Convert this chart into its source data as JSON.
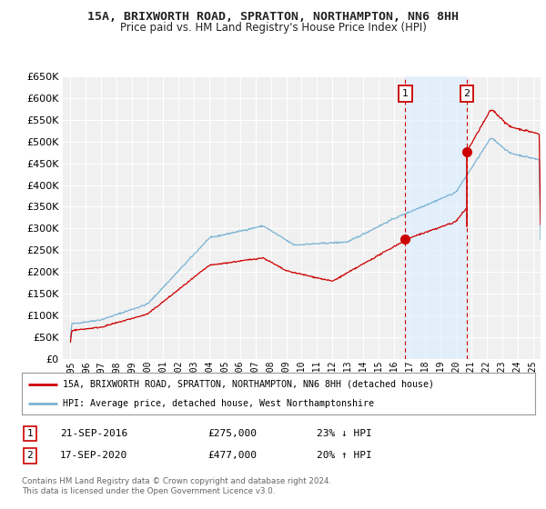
{
  "title": "15A, BRIXWORTH ROAD, SPRATTON, NORTHAMPTON, NN6 8HH",
  "subtitle": "Price paid vs. HM Land Registry's House Price Index (HPI)",
  "title_color": "#222222",
  "background_color": "#ffffff",
  "plot_bg_color": "#f0f0f0",
  "grid_color": "#ffffff",
  "shade_color": "#ddeeff",
  "ylim": [
    0,
    650000
  ],
  "yticks": [
    0,
    50000,
    100000,
    150000,
    200000,
    250000,
    300000,
    350000,
    400000,
    450000,
    500000,
    550000,
    600000,
    650000
  ],
  "xlim_start": 1994.5,
  "xlim_end": 2025.5,
  "hpi_color": "#7ab3d4",
  "property_color": "#cc0000",
  "sale1_year": 2016.72,
  "sale1_price": 275000,
  "sale2_year": 2020.72,
  "sale2_price": 477000,
  "legend_property": "15A, BRIXWORTH ROAD, SPRATTON, NORTHAMPTON, NN6 8HH (detached house)",
  "legend_hpi": "HPI: Average price, detached house, West Northamptonshire",
  "note1_label": "1",
  "note1_date": "21-SEP-2016",
  "note1_price": "£275,000",
  "note1_pct": "23% ↓ HPI",
  "note2_label": "2",
  "note2_date": "17-SEP-2020",
  "note2_price": "£477,000",
  "note2_pct": "20% ↑ HPI",
  "footer": "Contains HM Land Registry data © Crown copyright and database right 2024.\nThis data is licensed under the Open Government Licence v3.0.",
  "marker_box_color": "#cc0000"
}
